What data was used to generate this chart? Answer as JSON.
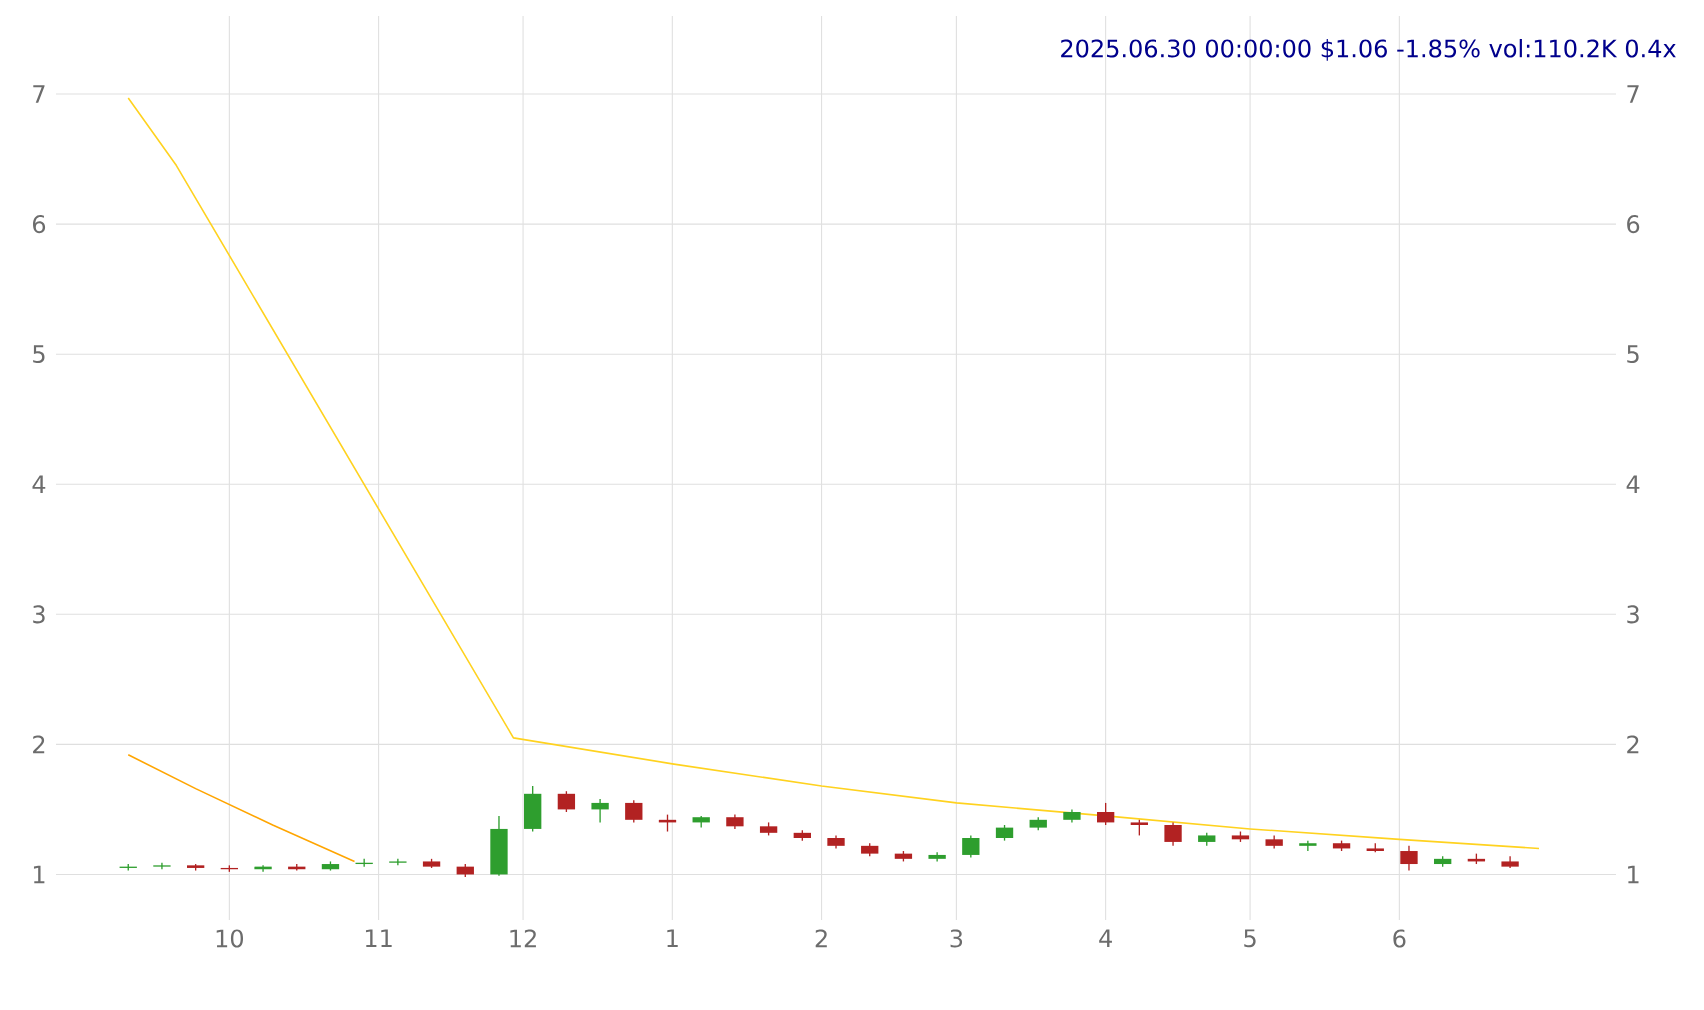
{
  "chart_data": {
    "type": "candlestick",
    "title": "2025.06.30 00:00:00 $1.06 -1.85% vol:110.2K 0.4x",
    "x": [
      "2024-09-10",
      "2024-09-17",
      "2024-09-24",
      "2024-10-01",
      "2024-10-08",
      "2024-10-15",
      "2024-10-22",
      "2024-10-29",
      "2024-11-05",
      "2024-11-12",
      "2024-11-19",
      "2024-11-26",
      "2024-12-03",
      "2024-12-10",
      "2024-12-17",
      "2024-12-24",
      "2024-12-31",
      "2025-01-07",
      "2025-01-14",
      "2025-01-21",
      "2025-01-28",
      "2025-02-04",
      "2025-02-11",
      "2025-02-18",
      "2025-02-25",
      "2025-03-04",
      "2025-03-11",
      "2025-03-18",
      "2025-03-25",
      "2025-04-01",
      "2025-04-08",
      "2025-04-15",
      "2025-04-22",
      "2025-04-29",
      "2025-05-06",
      "2025-05-13",
      "2025-05-20",
      "2025-05-27",
      "2025-06-03",
      "2025-06-10",
      "2025-06-17",
      "2025-06-24"
    ],
    "ohlc": [
      [
        1.05,
        1.08,
        1.03,
        1.06
      ],
      [
        1.06,
        1.09,
        1.04,
        1.07
      ],
      [
        1.07,
        1.08,
        1.03,
        1.05
      ],
      [
        1.05,
        1.07,
        1.02,
        1.04
      ],
      [
        1.04,
        1.07,
        1.02,
        1.06
      ],
      [
        1.06,
        1.08,
        1.03,
        1.04
      ],
      [
        1.04,
        1.1,
        1.03,
        1.08
      ],
      [
        1.08,
        1.12,
        1.06,
        1.09
      ],
      [
        1.09,
        1.12,
        1.07,
        1.1
      ],
      [
        1.1,
        1.12,
        1.05,
        1.06
      ],
      [
        1.06,
        1.08,
        0.98,
        1.0
      ],
      [
        1.0,
        1.45,
        0.99,
        1.35
      ],
      [
        1.35,
        1.68,
        1.33,
        1.62
      ],
      [
        1.62,
        1.64,
        1.48,
        1.5
      ],
      [
        1.5,
        1.58,
        1.4,
        1.55
      ],
      [
        1.55,
        1.57,
        1.4,
        1.42
      ],
      [
        1.42,
        1.46,
        1.33,
        1.4
      ],
      [
        1.4,
        1.45,
        1.36,
        1.44
      ],
      [
        1.44,
        1.46,
        1.35,
        1.37
      ],
      [
        1.37,
        1.4,
        1.3,
        1.32
      ],
      [
        1.32,
        1.34,
        1.26,
        1.28
      ],
      [
        1.28,
        1.3,
        1.2,
        1.22
      ],
      [
        1.22,
        1.24,
        1.14,
        1.16
      ],
      [
        1.16,
        1.18,
        1.1,
        1.12
      ],
      [
        1.12,
        1.17,
        1.1,
        1.15
      ],
      [
        1.15,
        1.3,
        1.13,
        1.28
      ],
      [
        1.28,
        1.38,
        1.26,
        1.36
      ],
      [
        1.36,
        1.44,
        1.34,
        1.42
      ],
      [
        1.42,
        1.5,
        1.4,
        1.48
      ],
      [
        1.48,
        1.55,
        1.38,
        1.4
      ],
      [
        1.4,
        1.42,
        1.3,
        1.38
      ],
      [
        1.38,
        1.4,
        1.22,
        1.25
      ],
      [
        1.25,
        1.32,
        1.22,
        1.3
      ],
      [
        1.3,
        1.33,
        1.25,
        1.27
      ],
      [
        1.27,
        1.3,
        1.2,
        1.22
      ],
      [
        1.22,
        1.26,
        1.18,
        1.24
      ],
      [
        1.24,
        1.26,
        1.18,
        1.2
      ],
      [
        1.2,
        1.24,
        1.17,
        1.18
      ],
      [
        1.18,
        1.22,
        1.03,
        1.08
      ],
      [
        1.08,
        1.14,
        1.06,
        1.12
      ],
      [
        1.12,
        1.16,
        1.08,
        1.1
      ],
      [
        1.1,
        1.14,
        1.05,
        1.06
      ]
    ],
    "colors": [
      "#2e9e2e",
      "#2e9e2e",
      "#b22222",
      "#b22222",
      "#2e9e2e",
      "#b22222",
      "#2e9e2e",
      "#2e9e2e",
      "#2e9e2e",
      "#b22222",
      "#b22222",
      "#2e9e2e",
      "#2e9e2e",
      "#b22222",
      "#2e9e2e",
      "#b22222",
      "#b22222",
      "#2e9e2e",
      "#b22222",
      "#b22222",
      "#b22222",
      "#b22222",
      "#b22222",
      "#b22222",
      "#2e9e2e",
      "#2e9e2e",
      "#2e9e2e",
      "#2e9e2e",
      "#2e9e2e",
      "#b22222",
      "#b22222",
      "#b22222",
      "#2e9e2e",
      "#b22222",
      "#b22222",
      "#2e9e2e",
      "#b22222",
      "#b22222",
      "#b22222",
      "#2e9e2e",
      "#b22222",
      "#b22222"
    ],
    "series": [
      {
        "type": "line",
        "color": "#ffd21f",
        "x": [
          "2024-09-10",
          "2024-09-20",
          "2024-11-29",
          "2025-01-01",
          "2025-02-01",
          "2025-03-01",
          "2025-04-01",
          "2025-05-01",
          "2025-06-01",
          "2025-06-30"
        ],
        "values": [
          6.97,
          6.45,
          2.05,
          1.85,
          1.68,
          1.55,
          1.45,
          1.35,
          1.27,
          1.2
        ]
      },
      {
        "type": "line",
        "color": "#ffa500",
        "x": [
          "2024-09-10",
          "2024-09-24",
          "2024-10-10",
          "2024-10-27"
        ],
        "values": [
          1.92,
          1.66,
          1.38,
          1.1
        ]
      }
    ],
    "xlim": [
      "2024-08-26",
      "2025-07-16"
    ],
    "xticks": [
      {
        "value": "2024-10-01",
        "label": "10"
      },
      {
        "value": "2024-11-01",
        "label": "11"
      },
      {
        "value": "2024-12-01",
        "label": "12"
      },
      {
        "value": "2025-01-01",
        "label": "1"
      },
      {
        "value": "2025-02-01",
        "label": "2"
      },
      {
        "value": "2025-03-01",
        "label": "3"
      },
      {
        "value": "2025-04-01",
        "label": "4"
      },
      {
        "value": "2025-05-01",
        "label": "5"
      },
      {
        "value": "2025-06-01",
        "label": "6"
      }
    ],
    "ylim": [
      0.65,
      7.6
    ],
    "yticks": [
      1,
      2,
      3,
      4,
      5,
      6,
      7
    ],
    "y2lim": [
      0.65,
      7.6
    ],
    "y2ticks": [
      1,
      2,
      3,
      4,
      5,
      6,
      7
    ],
    "grid": true
  }
}
